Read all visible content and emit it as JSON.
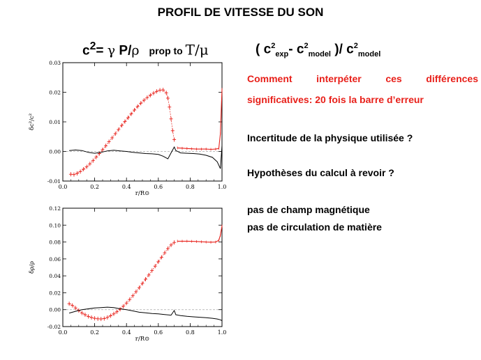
{
  "title": "PROFIL DE VITESSE DU SON",
  "formula_left": {
    "c2": "c",
    "sup": "2",
    "eq": "= ",
    "gamma": "γ",
    "mid": " P/",
    "rho": "ρ",
    "prop": "prop to ",
    "T": "T/μ"
  },
  "formula_right": {
    "open": "( c",
    "sup1": "2",
    "sub1": "exp",
    "dash": "- c",
    "sup2": "2",
    "sub2": "model",
    "close": " )/ c",
    "sup3": "2",
    "sub3": "model"
  },
  "text": {
    "q1_words": [
      "Comment",
      "interpéter",
      "ces",
      "différences"
    ],
    "q1_line2": "significatives: 20 fois la barre d’erreur",
    "q2": "Incertitude de la physique utilisée ?",
    "q3": "Hypothèses du calcul à revoir ?",
    "q4": "pas de champ magnétique",
    "q5": "pas de circulation de matière"
  },
  "colors": {
    "observed": "#e8201a",
    "model": "#000000",
    "zero_line": "#aaaaaa"
  },
  "chart_data": [
    {
      "type": "line",
      "ylabel": "δc²/c²",
      "xlabel": "r/R⊙",
      "xlim": [
        0,
        1
      ],
      "ylim": [
        -0.01,
        0.03
      ],
      "xticks": [
        "0.0",
        "0.2",
        "0.4",
        "0.6",
        "0.8",
        "1.0"
      ],
      "yticks": [
        "0.03",
        "0.02",
        "0.01",
        "0.00",
        "-0.01"
      ],
      "yticks_values": [
        0.03,
        0.02,
        0.01,
        0.0,
        -0.01
      ],
      "zero_line": true,
      "series": [
        {
          "style": "red-errorbars",
          "x": [
            0.05,
            0.07,
            0.09,
            0.11,
            0.13,
            0.15,
            0.17,
            0.19,
            0.21,
            0.23,
            0.25,
            0.27,
            0.29,
            0.31,
            0.33,
            0.35,
            0.37,
            0.39,
            0.41,
            0.43,
            0.45,
            0.47,
            0.49,
            0.51,
            0.53,
            0.55,
            0.57,
            0.59,
            0.61,
            0.63,
            0.65,
            0.66,
            0.67,
            0.68,
            0.69,
            0.7
          ],
          "y": [
            -0.0077,
            -0.0078,
            -0.0074,
            -0.0068,
            -0.006,
            -0.0052,
            -0.0042,
            -0.0031,
            -0.0019,
            -0.0007,
            0.0006,
            0.0019,
            0.0033,
            0.0046,
            0.006,
            0.0074,
            0.0088,
            0.0101,
            0.0114,
            0.0127,
            0.014,
            0.0152,
            0.0163,
            0.0173,
            0.0182,
            0.019,
            0.0197,
            0.0203,
            0.0207,
            0.0208,
            0.0198,
            0.018,
            0.015,
            0.011,
            0.007,
            0.004
          ]
        },
        {
          "style": "red-line",
          "x": [
            0.72,
            0.75,
            0.78,
            0.81,
            0.84,
            0.87,
            0.9,
            0.93,
            0.96,
            0.98,
            0.99,
            1.0
          ],
          "y": [
            0.0012,
            0.0011,
            0.001,
            0.0009,
            0.0008,
            0.0008,
            0.0008,
            0.0007,
            0.0008,
            0.001,
            0.006,
            0.021
          ]
        },
        {
          "style": "black-line",
          "x": [
            0.04,
            0.08,
            0.12,
            0.16,
            0.2,
            0.24,
            0.28,
            0.32,
            0.36,
            0.4,
            0.44,
            0.48,
            0.52,
            0.56,
            0.6,
            0.63,
            0.66,
            0.68,
            0.7,
            0.71,
            0.74,
            0.78,
            0.82,
            0.86,
            0.9,
            0.94,
            0.97,
            0.99,
            1.0
          ],
          "y": [
            0.0003,
            0.0005,
            0.0003,
            -0.0003,
            -0.0006,
            -0.0003,
            0.0002,
            0.0004,
            0.0002,
            0.0,
            -0.0003,
            -0.0005,
            -0.0007,
            -0.0008,
            -0.001,
            -0.0016,
            -0.0025,
            -0.0005,
            0.0015,
            0.0003,
            -0.0005,
            -0.0006,
            -0.0007,
            -0.0009,
            -0.0013,
            -0.002,
            -0.0035,
            -0.0058,
            0.002
          ]
        }
      ]
    },
    {
      "type": "line",
      "ylabel": "δρ/ρ",
      "xlabel": "r/R⊙",
      "xlim": [
        0,
        1
      ],
      "ylim": [
        -0.02,
        0.12
      ],
      "xticks": [
        "0.0",
        "0.2",
        "0.4",
        "0.6",
        "0.8",
        "1.0"
      ],
      "yticks": [
        "0.12",
        "0.10",
        "0.08",
        "0.06",
        "0.04",
        "0.02",
        "0.00",
        "-0.02"
      ],
      "yticks_values": [
        0.12,
        0.1,
        0.08,
        0.06,
        0.04,
        0.02,
        0.0,
        -0.02
      ],
      "zero_line": true,
      "series": [
        {
          "style": "red-errorbars",
          "x": [
            0.04,
            0.06,
            0.08,
            0.1,
            0.12,
            0.14,
            0.16,
            0.18,
            0.2,
            0.22,
            0.24,
            0.26,
            0.28,
            0.3,
            0.32,
            0.34,
            0.36,
            0.38,
            0.4,
            0.42,
            0.44,
            0.46,
            0.48,
            0.5,
            0.52,
            0.54,
            0.56,
            0.58,
            0.6,
            0.62,
            0.64,
            0.66,
            0.68,
            0.7
          ],
          "y": [
            0.007,
            0.005,
            0.002,
            -0.001,
            -0.004,
            -0.006,
            -0.008,
            -0.0093,
            -0.0102,
            -0.0108,
            -0.011,
            -0.0105,
            -0.0092,
            -0.0072,
            -0.005,
            -0.0025,
            0.0005,
            0.004,
            0.0078,
            0.012,
            0.0165,
            0.0212,
            0.026,
            0.031,
            0.036,
            0.041,
            0.0462,
            0.0515,
            0.0567,
            0.062,
            0.0672,
            0.0722,
            0.0765,
            0.0795
          ]
        },
        {
          "style": "red-line",
          "x": [
            0.72,
            0.75,
            0.78,
            0.81,
            0.84,
            0.87,
            0.9,
            0.93,
            0.96,
            0.98,
            0.99,
            1.0
          ],
          "y": [
            0.081,
            0.081,
            0.081,
            0.0808,
            0.0806,
            0.0803,
            0.08,
            0.0798,
            0.08,
            0.082,
            0.088,
            0.099
          ]
        },
        {
          "style": "black-line",
          "x": [
            0.04,
            0.08,
            0.12,
            0.16,
            0.2,
            0.24,
            0.28,
            0.32,
            0.36,
            0.4,
            0.44,
            0.48,
            0.52,
            0.56,
            0.6,
            0.64,
            0.68,
            0.7,
            0.71,
            0.74,
            0.78,
            0.82,
            0.86,
            0.9,
            0.94,
            0.97,
            0.99,
            1.0
          ],
          "y": [
            -0.004,
            -0.002,
            0.0,
            0.001,
            0.002,
            0.0025,
            0.003,
            0.0025,
            0.001,
            0.0,
            -0.0015,
            -0.003,
            -0.0038,
            -0.0045,
            -0.005,
            -0.0058,
            -0.0065,
            -0.001,
            -0.006,
            -0.007,
            -0.0078,
            -0.0085,
            -0.009,
            -0.0095,
            -0.0102,
            -0.011,
            -0.012,
            -0.013
          ]
        }
      ]
    }
  ]
}
